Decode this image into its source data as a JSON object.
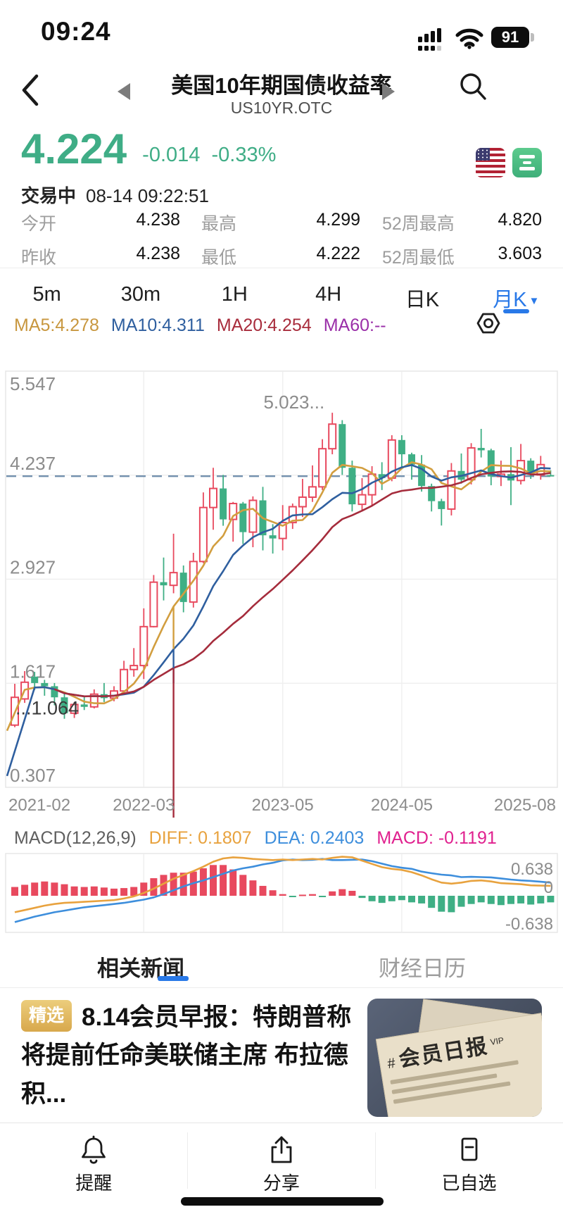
{
  "status_bar": {
    "time": "09:24",
    "battery": "91"
  },
  "header": {
    "title": "美国10年期国债收益率",
    "code": "US10YR.OTC"
  },
  "quote": {
    "last": "4.224",
    "change": "-0.014",
    "change_pct": "-0.33%",
    "session_status": "交易中",
    "timestamp": "08-14 09:22:51",
    "price_color": "#3FAD86"
  },
  "stats": {
    "rows": [
      [
        {
          "label": "今开",
          "value": "4.238"
        },
        {
          "label": "最高",
          "value": "4.299"
        },
        {
          "label": "52周最高",
          "value": "4.820"
        }
      ],
      [
        {
          "label": "昨收",
          "value": "4.238"
        },
        {
          "label": "最低",
          "value": "4.222"
        },
        {
          "label": "52周最低",
          "value": "3.603"
        }
      ]
    ]
  },
  "timeframe_tabs": {
    "items": [
      "5m",
      "30m",
      "1H",
      "4H",
      "日K",
      "月K"
    ],
    "active_index": 5,
    "active_color": "#2979E8"
  },
  "ma_legend": {
    "items": [
      {
        "label": "MA5:4.278",
        "color": "#C8973F"
      },
      {
        "label": "MA10:4.311",
        "color": "#2F5F9F"
      },
      {
        "label": "MA20:4.254",
        "color": "#A82C3C"
      },
      {
        "label": "MA60:--",
        "color": "#9A2FA8"
      }
    ]
  },
  "chart_data": {
    "type": "candlestick",
    "period": "月K",
    "title": "美国10年期国债收益率 US10YR.OTC 月K",
    "y_ticks": [
      "5.547",
      "4.237",
      "2.927",
      "1.617",
      "0.307"
    ],
    "ylim": [
      0.307,
      5.547
    ],
    "x_labels": [
      "2021-02",
      "2022-03",
      "2023-05",
      "2024-05",
      "2025-08"
    ],
    "x_label_indices": [
      0,
      13,
      27,
      39,
      54
    ],
    "current_price": 4.224,
    "high_annotation": "5.023...",
    "high_annotation_index": 32,
    "low_annotation": "...1.064",
    "low_annotation_index": 0,
    "up_color": "#E8495E",
    "down_color": "#3FAF85",
    "dashed_line_color": "#7391AE",
    "ma_colors": {
      "ma5": "#D29E3F",
      "ma10": "#2F5F9F",
      "ma20": "#A52C3C"
    },
    "candles": [
      [
        1.09,
        1.61,
        1.064,
        1.44
      ],
      [
        1.42,
        1.77,
        1.37,
        1.63
      ],
      [
        1.7,
        1.76,
        1.53,
        1.62
      ],
      [
        1.62,
        1.66,
        1.46,
        1.58
      ],
      [
        1.58,
        1.62,
        1.34,
        1.44
      ],
      [
        1.44,
        1.5,
        1.17,
        1.24
      ],
      [
        1.24,
        1.38,
        1.18,
        1.35
      ],
      [
        1.35,
        1.45,
        1.28,
        1.32
      ],
      [
        1.32,
        1.54,
        1.3,
        1.48
      ],
      [
        1.48,
        1.62,
        1.38,
        1.43
      ],
      [
        1.43,
        1.58,
        1.39,
        1.52
      ],
      [
        1.52,
        1.9,
        1.5,
        1.79
      ],
      [
        1.79,
        2.06,
        1.7,
        1.84
      ],
      [
        1.84,
        2.56,
        1.67,
        2.33
      ],
      [
        2.33,
        2.98,
        2.32,
        2.89
      ],
      [
        2.89,
        3.2,
        2.66,
        2.85
      ],
      [
        2.85,
        3.5,
        2.75,
        3.01
      ],
      [
        3.01,
        3.1,
        2.51,
        2.64
      ],
      [
        2.64,
        3.26,
        2.57,
        3.15
      ],
      [
        3.15,
        4.02,
        3.13,
        3.83
      ],
      [
        3.83,
        4.33,
        3.55,
        4.07
      ],
      [
        4.07,
        4.24,
        3.6,
        3.68
      ],
      [
        3.68,
        3.9,
        3.4,
        3.88
      ],
      [
        3.88,
        3.9,
        3.37,
        3.52
      ],
      [
        3.52,
        3.97,
        3.33,
        3.92
      ],
      [
        3.92,
        4.09,
        3.29,
        3.48
      ],
      [
        3.48,
        3.62,
        3.25,
        3.44
      ],
      [
        3.44,
        3.86,
        3.29,
        3.64
      ],
      [
        3.64,
        3.88,
        3.56,
        3.84
      ],
      [
        3.84,
        4.19,
        3.71,
        3.96
      ],
      [
        3.96,
        4.36,
        3.9,
        4.09
      ],
      [
        4.09,
        4.69,
        4.05,
        4.57
      ],
      [
        4.57,
        5.023,
        4.5,
        4.88
      ],
      [
        4.88,
        4.93,
        4.24,
        4.33
      ],
      [
        4.33,
        4.42,
        3.78,
        3.87
      ],
      [
        3.87,
        4.2,
        3.79,
        3.99
      ],
      [
        3.99,
        4.35,
        3.85,
        4.25
      ],
      [
        4.25,
        4.4,
        4.05,
        4.2
      ],
      [
        4.2,
        4.74,
        4.16,
        4.68
      ],
      [
        4.68,
        4.74,
        4.31,
        4.5
      ],
      [
        4.5,
        4.52,
        4.18,
        4.37
      ],
      [
        4.37,
        4.49,
        4.03,
        4.1
      ],
      [
        4.1,
        4.13,
        3.78,
        3.91
      ],
      [
        3.91,
        3.94,
        3.603,
        3.81
      ],
      [
        3.81,
        4.39,
        3.73,
        4.29
      ],
      [
        4.29,
        4.51,
        4.13,
        4.18
      ],
      [
        4.18,
        4.64,
        4.12,
        4.58
      ],
      [
        4.58,
        4.82,
        4.46,
        4.55
      ],
      [
        4.55,
        4.57,
        4.11,
        4.22
      ],
      [
        4.22,
        4.42,
        4.1,
        4.25
      ],
      [
        4.25,
        4.59,
        3.86,
        4.17
      ],
      [
        4.17,
        4.63,
        4.12,
        4.42
      ],
      [
        4.42,
        4.45,
        4.19,
        4.24
      ],
      [
        4.24,
        4.48,
        4.18,
        4.37
      ],
      [
        4.238,
        4.299,
        4.222,
        4.224
      ]
    ],
    "macd": {
      "label": "MACD(12,26,9)",
      "diff_label": "DIFF: 0.1807",
      "dea_label": "DEA: 0.2403",
      "macd_label": "MACD: -0.1191",
      "colors": {
        "diff": "#E8A23E",
        "dea": "#3D8EDC",
        "macd_value": "#E0218F",
        "bar_pos": "#E8495E",
        "bar_neg": "#3FAF85"
      },
      "y_ticks": [
        "0.638",
        "0",
        "-0.638"
      ],
      "bars": [
        0.16,
        0.2,
        0.24,
        0.26,
        0.24,
        0.21,
        0.17,
        0.16,
        0.17,
        0.15,
        0.13,
        0.14,
        0.16,
        0.24,
        0.32,
        0.38,
        0.42,
        0.42,
        0.44,
        0.5,
        0.56,
        0.56,
        0.48,
        0.38,
        0.28,
        0.18,
        0.1,
        0.03,
        -0.02,
        0.02,
        0.03,
        -0.02,
        0.08,
        0.12,
        0.09,
        -0.04,
        -0.1,
        -0.13,
        -0.1,
        -0.08,
        -0.12,
        -0.14,
        -0.22,
        -0.29,
        -0.3,
        -0.2,
        -0.15,
        -0.12,
        -0.15,
        -0.17,
        -0.15,
        -0.14,
        -0.16,
        -0.14,
        -0.12
      ],
      "diff": [
        -0.3,
        -0.26,
        -0.22,
        -0.18,
        -0.15,
        -0.13,
        -0.12,
        -0.11,
        -0.1,
        -0.09,
        -0.08,
        -0.05,
        -0.01,
        0.05,
        0.13,
        0.22,
        0.31,
        0.38,
        0.45,
        0.53,
        0.62,
        0.68,
        0.7,
        0.69,
        0.67,
        0.66,
        0.65,
        0.66,
        0.65,
        0.66,
        0.67,
        0.66,
        0.69,
        0.71,
        0.7,
        0.64,
        0.58,
        0.52,
        0.49,
        0.47,
        0.43,
        0.37,
        0.3,
        0.24,
        0.22,
        0.24,
        0.27,
        0.28,
        0.26,
        0.23,
        0.22,
        0.21,
        0.19,
        0.185,
        0.1807
      ],
      "dea": [
        -0.48,
        -0.43,
        -0.38,
        -0.34,
        -0.3,
        -0.27,
        -0.24,
        -0.21,
        -0.19,
        -0.17,
        -0.15,
        -0.13,
        -0.1,
        -0.07,
        -0.03,
        0.03,
        0.1,
        0.17,
        0.23,
        0.28,
        0.34,
        0.4,
        0.46,
        0.5,
        0.53,
        0.57,
        0.6,
        0.645,
        0.66,
        0.65,
        0.655,
        0.67,
        0.65,
        0.65,
        0.655,
        0.66,
        0.63,
        0.585,
        0.54,
        0.51,
        0.49,
        0.44,
        0.41,
        0.385,
        0.37,
        0.34,
        0.345,
        0.34,
        0.335,
        0.315,
        0.295,
        0.28,
        0.27,
        0.255,
        0.2403
      ]
    }
  },
  "news": {
    "tabs": [
      "相关新闻",
      "财经日历"
    ],
    "active_index": 0,
    "badge": "精选",
    "title": "8.14会员早报：特朗普称将提前任命美联储主席 布拉德积...",
    "thumb": {
      "hash": "#",
      "masthead": "会员日报",
      "vip": "VIP"
    }
  },
  "bottom_nav": {
    "items": [
      {
        "label": "提醒",
        "icon": "bell-icon"
      },
      {
        "label": "分享",
        "icon": "share-icon"
      },
      {
        "label": "已自选",
        "icon": "watchlist-added-icon"
      }
    ]
  }
}
